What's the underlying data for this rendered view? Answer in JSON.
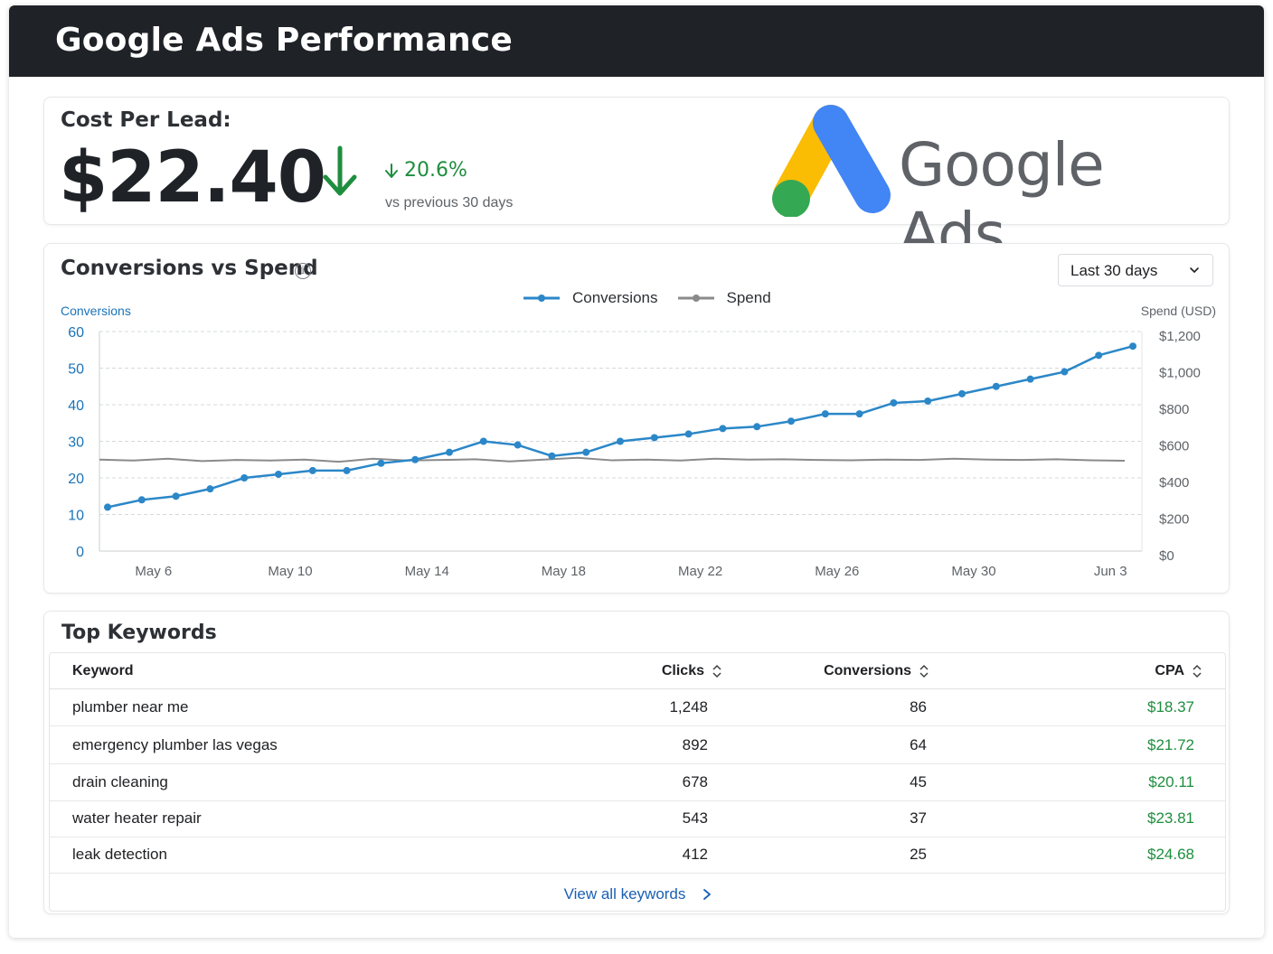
{
  "header": {
    "title": "Google Ads Performance"
  },
  "kpi": {
    "label": "Cost Per Lead:",
    "value": "$22.40",
    "delta": "20.6%",
    "delta_direction": "down",
    "compare_text": "vs previous 30 days",
    "positive_color": "#1e8e3e"
  },
  "brand": {
    "text": "Google Ads",
    "colors": {
      "blue": "#4285f4",
      "yellow": "#fbbc04",
      "green": "#34a853"
    }
  },
  "chart_section": {
    "title": "Conversions vs Spend",
    "info_icon": "info-icon",
    "range_select": {
      "value": "Last 30 days",
      "icon": "chevron-down-icon"
    }
  },
  "chart_data": {
    "type": "line",
    "title": "Conversions vs Spend",
    "x": [
      "May 5",
      "May 6",
      "May 7",
      "May 8",
      "May 9",
      "May 10",
      "May 11",
      "May 12",
      "May 13",
      "May 14",
      "May 15",
      "May 16",
      "May 17",
      "May 18",
      "May 19",
      "May 20",
      "May 21",
      "May 22",
      "May 23",
      "May 24",
      "May 25",
      "May 26",
      "May 27",
      "May 28",
      "May 29",
      "May 30",
      "May 31",
      "Jun 1",
      "Jun 2",
      "Jun 3",
      "Jun 4"
    ],
    "x_ticks": [
      "May 6",
      "May 10",
      "May 14",
      "May 18",
      "May 22",
      "May 26",
      "May 30",
      "Jun 3"
    ],
    "series": [
      {
        "name": "Conversions",
        "axis": "left",
        "color": "#2b87c8",
        "values": [
          12,
          14,
          15,
          17,
          20,
          21,
          22,
          22,
          24,
          25,
          27,
          30,
          29,
          26,
          27,
          30,
          31,
          32,
          33.5,
          34,
          35.5,
          37.5,
          37.5,
          40.5,
          41,
          43,
          45,
          47,
          49,
          53.5,
          56
        ]
      },
      {
        "name": "Spend",
        "axis": "right",
        "color": "#8a8a8a",
        "values": [
          500,
          495,
          505,
          492,
          498,
          495,
          500,
          488,
          505,
          495,
          498,
          502,
          490,
          500,
          510,
          496,
          500,
          495,
          505,
          500,
          502,
          498,
          496,
          500,
          498,
          505,
          500,
          498,
          502,
          496,
          494
        ]
      }
    ],
    "yleft": {
      "label": "Conversions",
      "ticks": [
        "60",
        "50",
        "40",
        "30",
        "20",
        "10",
        "0"
      ],
      "range": [
        0,
        60
      ]
    },
    "yright": {
      "label": "Spend (USD)",
      "ticks": [
        "$1,200",
        "$1,000",
        "$800",
        "$600",
        "$400",
        "$200",
        "$0"
      ],
      "range": [
        0,
        1200
      ]
    },
    "grid": true,
    "legend": "top-center"
  },
  "keywords": {
    "title": "Top Keywords",
    "columns": [
      "Keyword",
      "Clicks",
      "Conversions",
      "CPA"
    ],
    "sort_icon": "sort-icon",
    "rows": [
      {
        "keyword": "plumber near me",
        "clicks": "1,248",
        "conversions": "86",
        "cpa": "$18.37"
      },
      {
        "keyword": "emergency plumber las vegas",
        "clicks": "892",
        "conversions": "64",
        "cpa": "$21.72"
      },
      {
        "keyword": "drain cleaning",
        "clicks": "678",
        "conversions": "45",
        "cpa": "$20.11"
      },
      {
        "keyword": "water heater repair",
        "clicks": "543",
        "conversions": "37",
        "cpa": "$23.81"
      },
      {
        "keyword": "leak detection",
        "clicks": "412",
        "conversions": "25",
        "cpa": "$24.68"
      }
    ],
    "view_all": "View all keywords"
  }
}
